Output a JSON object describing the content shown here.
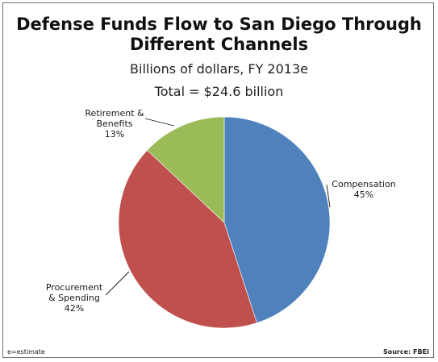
{
  "chart_data": {
    "type": "pie",
    "title_lines": [
      "Defense Funds Flow to San Diego Through",
      "Different Channels"
    ],
    "subtitle": "Billions of dollars, FY 2013e",
    "subtitle2": "Total = $24.6 billion",
    "total": 24.6,
    "start_angle_deg": 0,
    "direction": "clockwise",
    "slices": [
      {
        "name": "Compensation",
        "label_lines": [
          "Compensation",
          "45%"
        ],
        "value": 45,
        "color": "#4f81bd"
      },
      {
        "name": "Procurement & Spending",
        "label_lines": [
          "Procurement",
          "& Spending",
          "42%"
        ],
        "value": 42,
        "color": "#c0504d"
      },
      {
        "name": "Retirement & Benefits",
        "label_lines": [
          "Retirement &",
          "Benefits",
          "13%"
        ],
        "value": 13,
        "color": "#9bbb59"
      }
    ],
    "legend": "none"
  },
  "footer": {
    "note": "e=estimate",
    "source": "Source: FBEI"
  }
}
